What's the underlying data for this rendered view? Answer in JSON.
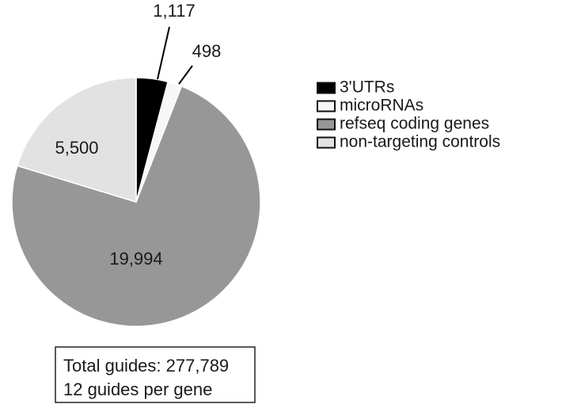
{
  "chart_data": {
    "type": "pie",
    "categories": [
      "3'UTRs",
      "microRNAs",
      "refseq coding genes",
      "non-targeting controls"
    ],
    "values": [
      1117,
      498,
      19994,
      5500
    ],
    "value_labels": [
      "1,117",
      "498",
      "19,994",
      "5,500"
    ],
    "colors": [
      "#000000",
      "#f7f7f7",
      "#979797",
      "#e2e2e2"
    ],
    "annotations": [
      "Total guides: 277,789",
      "12 guides per gene"
    ]
  }
}
